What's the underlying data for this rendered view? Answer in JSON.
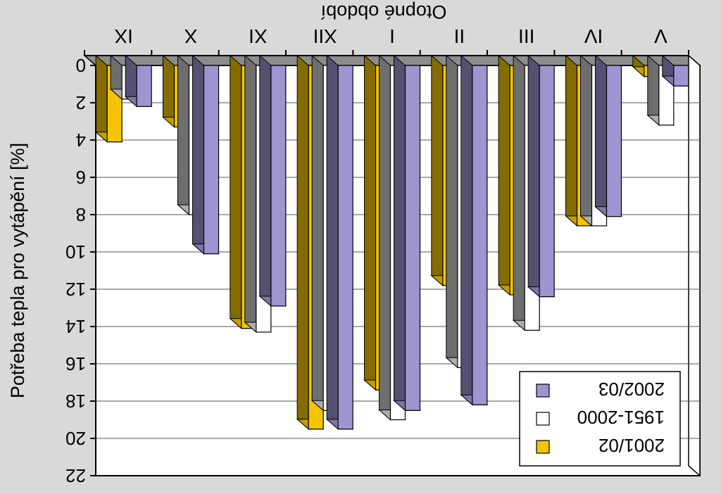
{
  "chart_data": {
    "type": "bar",
    "title": "",
    "xlabel": "Otopné období",
    "ylabel": "Potřeba tepla pro vytápění [%]",
    "categories": [
      "IX",
      "X",
      "XI",
      "XII",
      "I",
      "II",
      "III",
      "IV",
      "V"
    ],
    "ylim": [
      0,
      22
    ],
    "yticks": [
      0,
      2,
      4,
      6,
      8,
      10,
      12,
      14,
      16,
      18,
      20,
      22
    ],
    "grid": true,
    "legend_position": "bottom-right",
    "series": [
      {
        "name": "2001/02",
        "color": "#f2c500",
        "values": [
          4.1,
          3.3,
          14.1,
          19.5,
          17.4,
          11.8,
          12.3,
          8.6,
          0.6
        ]
      },
      {
        "name": "1951-2000",
        "color": "#ffffff",
        "values": [
          1.8,
          8.0,
          14.3,
          18.5,
          19.0,
          16.2,
          14.2,
          8.6,
          3.2
        ]
      },
      {
        "name": "2002/03",
        "color": "#9d94d0",
        "values": [
          2.2,
          10.1,
          12.9,
          19.5,
          18.5,
          18.2,
          12.4,
          8.1,
          1.1
        ]
      }
    ]
  }
}
